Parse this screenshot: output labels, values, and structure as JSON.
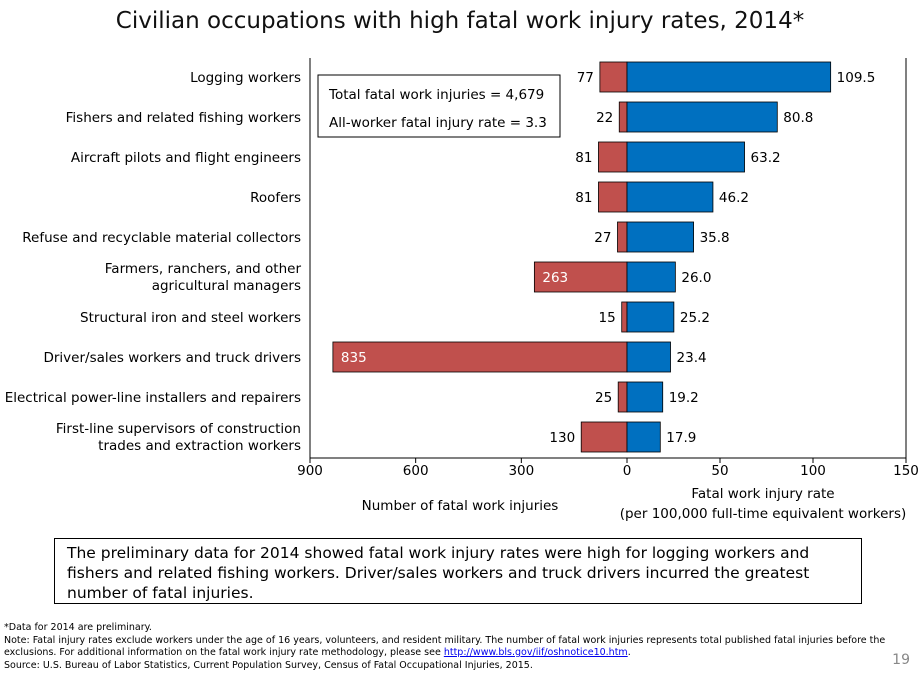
{
  "chart_data": {
    "type": "bar",
    "title": "Civilian occupations with high fatal work injury rates, 2014*",
    "categories": [
      [
        "Logging workers"
      ],
      [
        "Fishers and related fishing workers"
      ],
      [
        "Aircraft pilots and flight engineers"
      ],
      [
        "Roofers"
      ],
      [
        "Refuse and recyclable material collectors"
      ],
      [
        "Farmers, ranchers, and other",
        "agricultural managers"
      ],
      [
        "Structural iron and steel workers"
      ],
      [
        "Driver/sales workers and truck drivers"
      ],
      [
        "Electrical power-line installers and repairers"
      ],
      [
        "First-line supervisors of construction",
        "trades and extraction workers"
      ]
    ],
    "series": [
      {
        "name": "Number of fatal work injuries",
        "values": [
          77,
          22,
          81,
          81,
          27,
          263,
          15,
          835,
          25,
          130
        ],
        "value_labels": [
          "77",
          "22",
          "81",
          "81",
          "27",
          "263",
          "15",
          "835",
          "25",
          "130"
        ],
        "color": "#c0504d"
      },
      {
        "name": "Fatal work injury rate",
        "values": [
          109.5,
          80.8,
          63.2,
          46.2,
          35.8,
          26.0,
          25.2,
          23.4,
          19.2,
          17.9
        ],
        "value_labels": [
          "109.5",
          "80.8",
          "63.2",
          "46.2",
          "35.8",
          "26.0",
          "25.2",
          "23.4",
          "19.2",
          "17.9"
        ],
        "color": "#0070c0"
      }
    ],
    "left_axis": {
      "ticks": [
        900,
        600,
        300,
        0
      ],
      "tick_labels": [
        "900",
        "600",
        "300",
        "0"
      ],
      "range": [
        0,
        900
      ]
    },
    "right_axis": {
      "ticks": [
        50,
        100,
        150
      ],
      "tick_labels": [
        "50",
        "100",
        "150"
      ],
      "range": [
        0,
        150
      ]
    },
    "left_xlabel": "Number of fatal work injuries",
    "right_xlabel": [
      "Fatal work injury rate",
      "(per 100,000 full-time equivalent workers)"
    ],
    "stats_box": [
      "Total fatal work injuries = 4,679",
      "All-worker fatal injury rate = 3.3"
    ]
  },
  "summary_text": "The preliminary data for 2014 showed fatal work injury rates were high for logging workers and fishers and related fishing workers. Driver/sales workers and truck drivers incurred the greatest number of fatal injuries.",
  "notes": {
    "preliminary": "*Data for 2014 are preliminary.",
    "note_prefix": "Note: Fatal injury rates exclude workers under the age of 16 years, volunteers, and resident military. The number of fatal work injuries represents total published fatal injuries before the exclusions. For additional information on the fatal work injury rate methodology, please see ",
    "note_link": "http://www.bls.gov/iif/oshnotice10.htm",
    "note_suffix": ".",
    "source": "Source:  U.S. Bureau of Labor Statistics, Current Population Survey, Census of Fatal Occupational Injuries, 2015."
  },
  "page_number": "19",
  "colors": {
    "injuries": "#c0504d",
    "rate": "#0070c0",
    "bar_stroke": "#000000"
  }
}
